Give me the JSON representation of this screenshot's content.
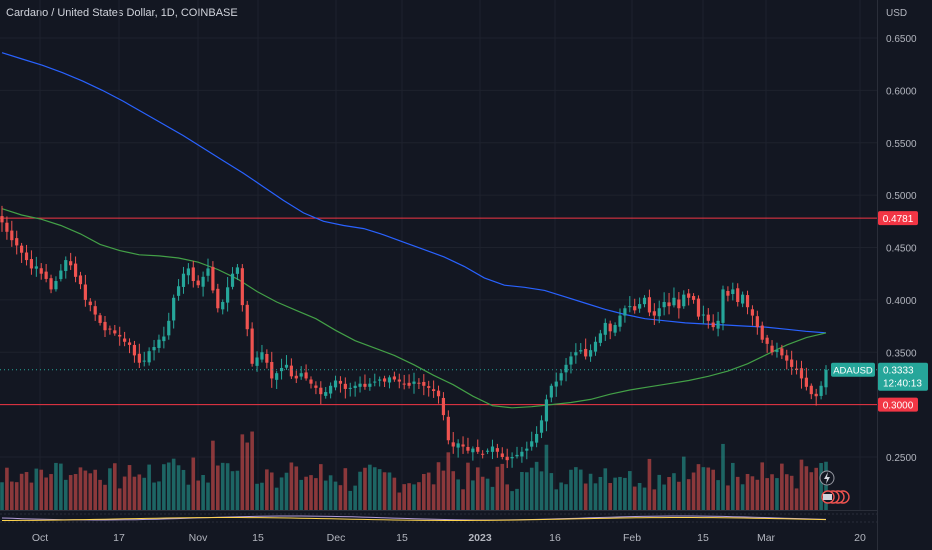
{
  "header": {
    "title": "Cardano / United States Dollar, 1D, COINBASE"
  },
  "price_axis": {
    "unit_label": "USD"
  },
  "chart_data": {
    "type": "candlestick",
    "title": "Cardano / United States Dollar, 1D, COINBASE",
    "symbol": "ADAUSD",
    "currency": "USD",
    "ylim": [
      0.2,
      0.67
    ],
    "y_ticks": [
      "0.6500",
      "0.6000",
      "0.5500",
      "0.5000",
      "0.4500",
      "0.4000",
      "0.3500",
      "0.2500"
    ],
    "x_ticks": [
      "Oct",
      "17",
      "Nov",
      "15",
      "Dec",
      "15",
      "2023",
      "16",
      "Feb",
      "15",
      "Mar",
      "20"
    ],
    "horizontal_levels": [
      {
        "value": 0.4781,
        "label": "0.4781",
        "color": "#f23645"
      },
      {
        "value": 0.3,
        "label": "0.3000",
        "color": "#f23645"
      }
    ],
    "last_price": {
      "symbol": "ADAUSD",
      "value": "0.3333",
      "countdown": "12:40:13",
      "color": "#26a69a"
    },
    "candle_colors": {
      "up": "#26a69a",
      "down": "#ef5350"
    },
    "daily_closes": [
      0.474,
      0.465,
      0.457,
      0.452,
      0.445,
      0.438,
      0.43,
      0.432,
      0.425,
      0.42,
      0.41,
      0.418,
      0.428,
      0.438,
      0.433,
      0.422,
      0.415,
      0.4,
      0.395,
      0.386,
      0.378,
      0.371,
      0.372,
      0.368,
      0.365,
      0.36,
      0.357,
      0.347,
      0.34,
      0.342,
      0.351,
      0.355,
      0.362,
      0.365,
      0.38,
      0.402,
      0.413,
      0.425,
      0.43,
      0.418,
      0.414,
      0.422,
      0.43,
      0.409,
      0.392,
      0.398,
      0.412,
      0.425,
      0.431,
      0.395,
      0.372,
      0.339,
      0.345,
      0.35,
      0.34,
      0.325,
      0.33,
      0.335,
      0.338,
      0.327,
      0.325,
      0.33,
      0.325,
      0.32,
      0.316,
      0.31,
      0.312,
      0.318,
      0.323,
      0.32,
      0.315,
      0.316,
      0.318,
      0.32,
      0.317,
      0.32,
      0.322,
      0.324,
      0.322,
      0.326,
      0.324,
      0.322,
      0.32,
      0.318,
      0.322,
      0.32,
      0.318,
      0.316,
      0.313,
      0.308,
      0.29,
      0.266,
      0.26,
      0.263,
      0.26,
      0.256,
      0.258,
      0.255,
      0.253,
      0.256,
      0.26,
      0.255,
      0.25,
      0.247,
      0.25,
      0.252,
      0.255,
      0.258,
      0.265,
      0.272,
      0.285,
      0.305,
      0.318,
      0.322,
      0.33,
      0.338,
      0.346,
      0.35,
      0.352,
      0.346,
      0.352,
      0.36,
      0.368,
      0.378,
      0.37,
      0.376,
      0.385,
      0.392,
      0.394,
      0.39,
      0.396,
      0.402,
      0.388,
      0.385,
      0.392,
      0.398,
      0.394,
      0.402,
      0.392,
      0.405,
      0.402,
      0.4,
      0.384,
      0.386,
      0.38,
      0.374,
      0.38,
      0.41,
      0.404,
      0.41,
      0.398,
      0.405,
      0.393,
      0.385,
      0.374,
      0.362,
      0.358,
      0.35,
      0.352,
      0.347,
      0.342,
      0.336,
      0.333,
      0.325,
      0.317,
      0.31,
      0.308,
      0.318,
      0.3333
    ],
    "moving_averages": [
      {
        "color": "#2962ff",
        "values": [
          0.636,
          0.63,
          0.624,
          0.617,
          0.609,
          0.6,
          0.59,
          0.579,
          0.568,
          0.557,
          0.545,
          0.533,
          0.521,
          0.508,
          0.495,
          0.483,
          0.475,
          0.471,
          0.468,
          0.462,
          0.455,
          0.448,
          0.441,
          0.432,
          0.421,
          0.414,
          0.412,
          0.409,
          0.403,
          0.397,
          0.391,
          0.386,
          0.382,
          0.38,
          0.378,
          0.377,
          0.376,
          0.375,
          0.374,
          0.372,
          0.37,
          0.3685
        ]
      },
      {
        "color": "#43a047",
        "values": [
          0.487,
          0.481,
          0.477,
          0.471,
          0.463,
          0.453,
          0.447,
          0.443,
          0.442,
          0.44,
          0.436,
          0.429,
          0.42,
          0.408,
          0.398,
          0.39,
          0.382,
          0.371,
          0.361,
          0.354,
          0.347,
          0.338,
          0.328,
          0.319,
          0.308,
          0.299,
          0.297,
          0.298,
          0.3,
          0.302,
          0.305,
          0.31,
          0.314,
          0.317,
          0.32,
          0.323,
          0.327,
          0.332,
          0.339,
          0.348,
          0.357,
          0.364,
          0.3685
        ]
      }
    ],
    "volume_pane": {
      "note": "volume bars shown, values not labeled"
    }
  }
}
